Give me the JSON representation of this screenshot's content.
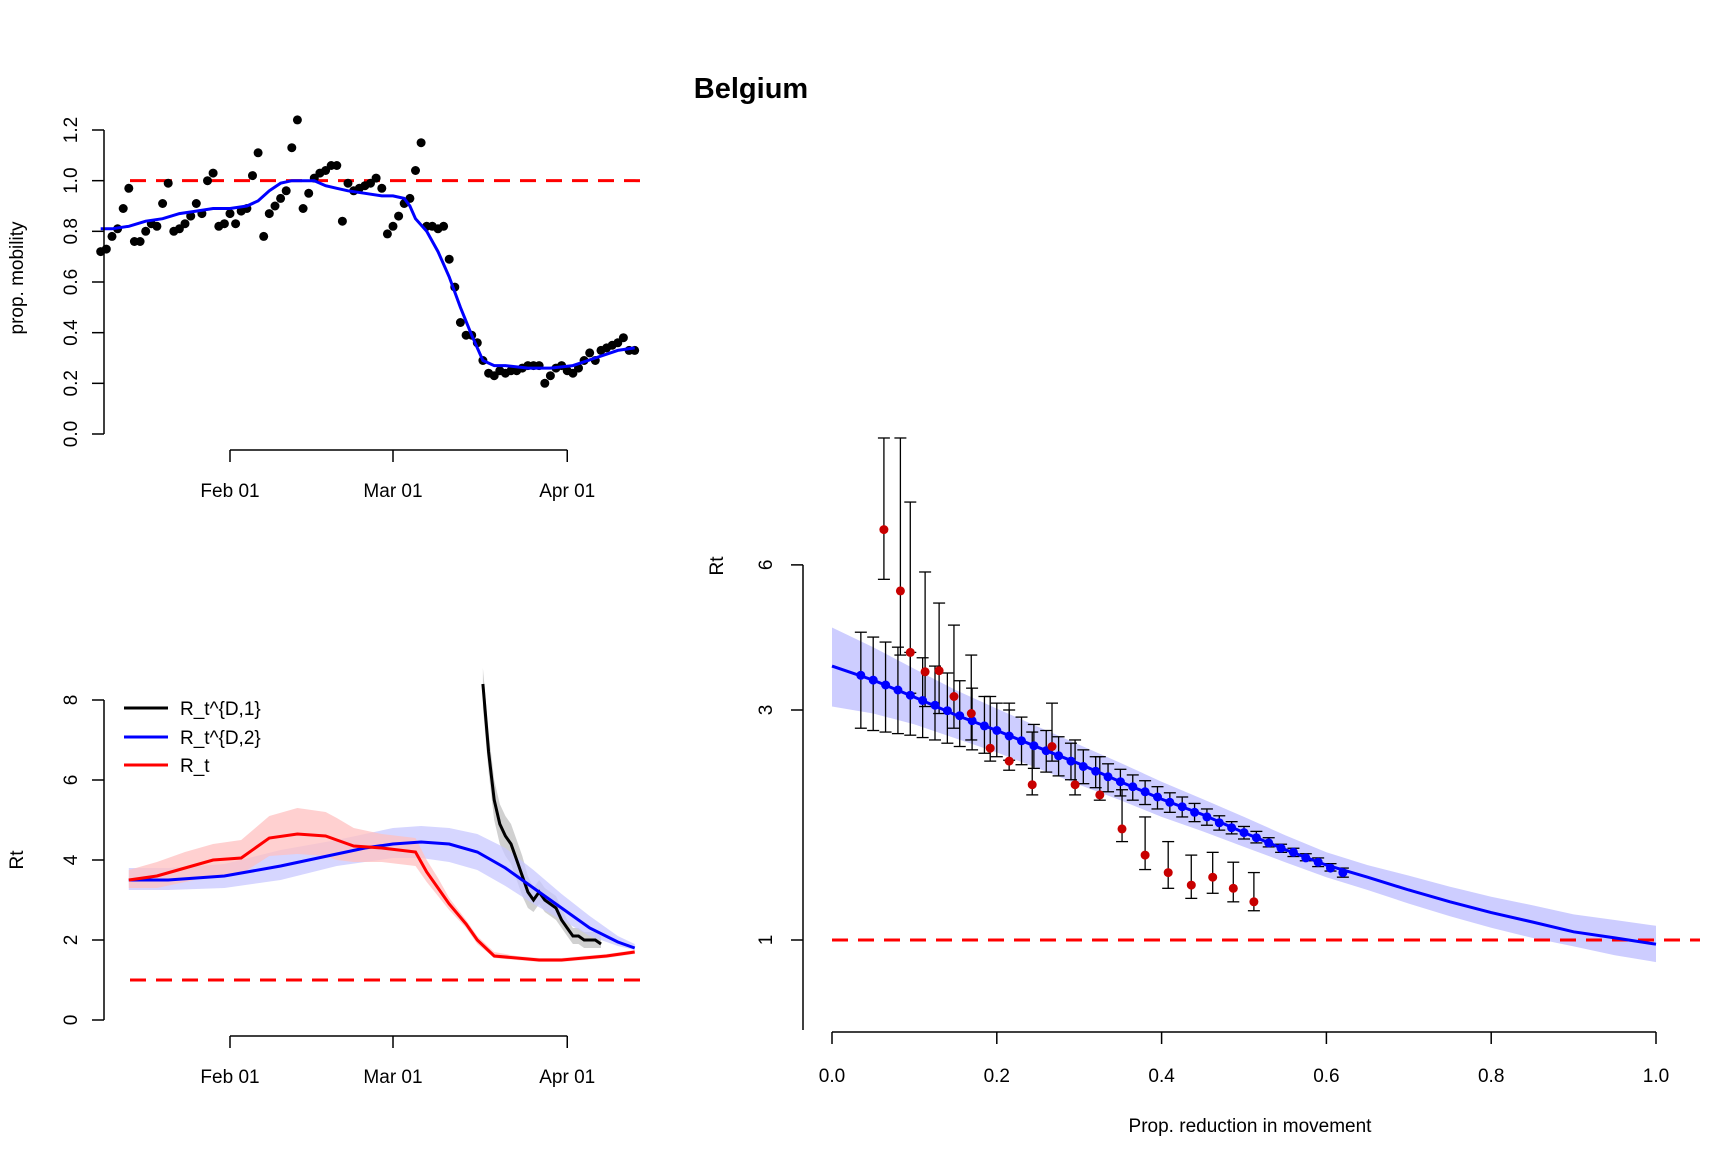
{
  "figure_title": "Belgium",
  "colors": {
    "observed": "#000000",
    "smooth": "#0000ff",
    "reference": "#ff0000",
    "band_blue": "#c8c8ff",
    "band_red": "#ffc0c0",
    "band_gray": "#c0c0c0",
    "points_red": "#c80000"
  },
  "chart_data": [
    {
      "id": "mobility",
      "type": "scatter",
      "title": "",
      "xlabel": "",
      "ylabel": "prop. mobility",
      "x_ticks": [
        "Feb 01",
        "Mar 01",
        "Apr 01"
      ],
      "x_tick_days": [
        31,
        60,
        91
      ],
      "x_range_days": [
        8,
        103
      ],
      "y_ticks": [
        "0.0",
        "0.2",
        "0.4",
        "0.6",
        "0.8",
        "1.0",
        "1.2"
      ],
      "ylim": [
        0,
        1.25
      ],
      "reference_line": 1.0,
      "series": [
        {
          "kind": "points",
          "day": [
            8,
            9,
            10,
            11,
            12,
            13,
            14,
            15,
            16,
            17,
            18,
            19,
            20,
            21,
            22,
            23,
            24,
            25,
            26,
            27,
            28,
            29,
            30,
            31,
            32,
            33,
            34,
            35,
            36,
            37,
            38,
            39,
            40,
            41,
            42,
            43,
            44,
            45,
            46,
            47,
            48,
            49,
            50,
            51,
            52,
            53,
            54,
            55,
            56,
            57,
            58,
            59,
            60,
            61,
            62,
            63,
            64,
            65,
            66,
            67,
            68,
            69,
            70,
            71,
            72,
            73,
            74,
            75,
            76,
            77,
            78,
            79,
            80,
            81,
            82,
            83,
            84,
            85,
            86,
            87,
            88,
            89,
            90,
            91,
            92,
            93,
            94,
            95,
            96,
            97,
            98,
            99,
            100,
            101,
            102,
            103
          ],
          "value": [
            0.72,
            0.73,
            0.78,
            0.81,
            0.89,
            0.97,
            0.76,
            0.76,
            0.8,
            0.83,
            0.82,
            0.91,
            0.99,
            0.8,
            0.81,
            0.83,
            0.86,
            0.91,
            0.87,
            1.0,
            1.03,
            0.82,
            0.83,
            0.87,
            0.83,
            0.88,
            0.89,
            1.02,
            1.11,
            0.78,
            0.87,
            0.9,
            0.93,
            0.96,
            1.13,
            1.24,
            0.89,
            0.95,
            1.01,
            1.03,
            1.04,
            1.06,
            1.06,
            0.84,
            0.99,
            0.96,
            0.97,
            0.98,
            0.99,
            1.01,
            0.97,
            0.79,
            0.82,
            0.86,
            0.91,
            0.93,
            1.04,
            1.15,
            0.82,
            0.82,
            0.81,
            0.82,
            0.69,
            0.58,
            0.44,
            0.39,
            0.39,
            0.36,
            0.29,
            0.24,
            0.23,
            0.25,
            0.24,
            0.25,
            0.25,
            0.26,
            0.27,
            0.27,
            0.27,
            0.2,
            0.23,
            0.26,
            0.27,
            0.25,
            0.24,
            0.26,
            0.29,
            0.32,
            0.29,
            0.33,
            0.34,
            0.35,
            0.36,
            0.38,
            0.33,
            0.33
          ]
        },
        {
          "kind": "smooth",
          "day": [
            8,
            10,
            13,
            16,
            19,
            22,
            25,
            28,
            31,
            34,
            36,
            38,
            40,
            42,
            44,
            46,
            48,
            50,
            52,
            55,
            58,
            60,
            62,
            63,
            64,
            66,
            68,
            70,
            72,
            74,
            76,
            78,
            80,
            84,
            88,
            92,
            96,
            100,
            103
          ],
          "value": [
            0.81,
            0.81,
            0.82,
            0.84,
            0.85,
            0.87,
            0.88,
            0.89,
            0.89,
            0.9,
            0.92,
            0.96,
            0.99,
            1.0,
            1.0,
            1.0,
            0.98,
            0.97,
            0.96,
            0.95,
            0.94,
            0.94,
            0.93,
            0.9,
            0.85,
            0.8,
            0.72,
            0.62,
            0.5,
            0.39,
            0.29,
            0.27,
            0.27,
            0.26,
            0.26,
            0.27,
            0.3,
            0.33,
            0.34
          ]
        }
      ]
    },
    {
      "id": "rt_time",
      "type": "line",
      "title": "",
      "xlabel": "",
      "ylabel": "Rt",
      "x_ticks": [
        "Feb 01",
        "Mar 01",
        "Apr 01"
      ],
      "x_tick_days": [
        31,
        60,
        91
      ],
      "y_ticks": [
        "0",
        "2",
        "4",
        "6",
        "8"
      ],
      "ylim": [
        0,
        8
      ],
      "reference_line": 1,
      "legend": {
        "placement": "top-left",
        "entries": [
          "R_t^{D,1}",
          "R_t^{D,2}",
          "R_t"
        ]
      },
      "series": [
        {
          "name": "R_t^{D,1}",
          "color": "#000000",
          "day": [
            76,
            77,
            78,
            79,
            80,
            81,
            82,
            83,
            84,
            85,
            86,
            87,
            88,
            89,
            90,
            91,
            92,
            93,
            94,
            95,
            96,
            97
          ],
          "value": [
            8.4,
            6.7,
            5.5,
            4.9,
            4.6,
            4.4,
            4.0,
            3.6,
            3.2,
            3.0,
            3.2,
            3.0,
            2.9,
            2.8,
            2.5,
            2.3,
            2.1,
            2.1,
            2.0,
            2.0,
            2.0,
            1.9
          ],
          "band_lower": [
            7.8,
            6.2,
            5.0,
            4.4,
            4.1,
            3.9,
            3.5,
            3.1,
            2.8,
            2.7,
            2.9,
            2.7,
            2.6,
            2.5,
            2.3,
            2.1,
            1.9,
            1.9,
            1.8,
            1.8,
            1.8,
            1.8
          ],
          "band_upper": [
            8.8,
            7.2,
            6.0,
            5.4,
            5.1,
            4.9,
            4.5,
            4.1,
            3.6,
            3.3,
            3.5,
            3.3,
            3.2,
            3.1,
            2.8,
            2.5,
            2.3,
            2.3,
            2.2,
            2.2,
            2.2,
            2.1
          ]
        },
        {
          "name": "R_t^{D,2}",
          "color": "#0000ff",
          "day": [
            13,
            20,
            30,
            40,
            50,
            55,
            60,
            65,
            70,
            75,
            80,
            85,
            90,
            95,
            100,
            103
          ],
          "value": [
            3.5,
            3.5,
            3.6,
            3.85,
            4.15,
            4.3,
            4.4,
            4.45,
            4.4,
            4.2,
            3.8,
            3.3,
            2.8,
            2.3,
            1.95,
            1.8
          ],
          "band_lower": [
            3.25,
            3.25,
            3.3,
            3.5,
            3.85,
            3.95,
            4.05,
            4.05,
            3.95,
            3.75,
            3.35,
            2.9,
            2.5,
            2.1,
            1.85,
            1.75
          ],
          "band_upper": [
            3.8,
            3.8,
            3.9,
            4.25,
            4.5,
            4.65,
            4.8,
            4.85,
            4.8,
            4.65,
            4.3,
            3.75,
            3.15,
            2.6,
            2.1,
            1.9
          ]
        },
        {
          "name": "R_t",
          "color": "#ff0000",
          "day": [
            13,
            18,
            23,
            28,
            33,
            38,
            43,
            48,
            50,
            53,
            58,
            61,
            64,
            66,
            68,
            70,
            73,
            75,
            78,
            82,
            86,
            90,
            94,
            98,
            103
          ],
          "value": [
            3.5,
            3.6,
            3.8,
            4.0,
            4.05,
            4.55,
            4.65,
            4.6,
            4.5,
            4.35,
            4.3,
            4.25,
            4.2,
            3.7,
            3.3,
            2.9,
            2.4,
            2.0,
            1.6,
            1.55,
            1.5,
            1.5,
            1.55,
            1.6,
            1.7
          ],
          "band_lower": [
            3.3,
            3.3,
            3.45,
            3.6,
            3.65,
            4.1,
            4.15,
            4.1,
            4.0,
            3.95,
            3.95,
            3.9,
            3.85,
            3.45,
            3.1,
            2.75,
            2.3,
            1.9,
            1.55,
            1.5,
            1.45,
            1.45,
            1.5,
            1.55,
            1.65
          ],
          "band_upper": [
            3.75,
            3.95,
            4.2,
            4.4,
            4.5,
            5.1,
            5.3,
            5.2,
            5.05,
            4.8,
            4.65,
            4.6,
            4.55,
            4.0,
            3.55,
            3.05,
            2.5,
            2.1,
            1.7,
            1.6,
            1.55,
            1.55,
            1.6,
            1.65,
            1.75
          ]
        }
      ]
    },
    {
      "id": "rt_vs_reduction",
      "type": "scatter",
      "title": "",
      "xlabel": "Prop. reduction in movement",
      "ylabel": "Rt",
      "log_y": true,
      "x_ticks": [
        "0.0",
        "0.2",
        "0.4",
        "0.6",
        "0.8",
        "1.0"
      ],
      "y_ticks": [
        "1",
        "3",
        "6"
      ],
      "xlim": [
        0,
        1
      ],
      "ylim": [
        0.73,
        11
      ],
      "reference_line": 1,
      "points": {
        "x": [
          0.063,
          0.083,
          0.095,
          0.113,
          0.13,
          0.148,
          0.169,
          0.192,
          0.215,
          0.243,
          0.267,
          0.295,
          0.325,
          0.352,
          0.38,
          0.408,
          0.436,
          0.462,
          0.487,
          0.512
        ],
        "y": [
          7.1,
          5.3,
          3.95,
          3.6,
          3.62,
          3.2,
          2.95,
          2.5,
          2.35,
          2.1,
          2.52,
          2.1,
          2.0,
          1.7,
          1.5,
          1.38,
          1.3,
          1.35,
          1.28,
          1.2
        ]
      },
      "fitted_points": {
        "x": [
          0.035,
          0.05,
          0.065,
          0.08,
          0.095,
          0.11,
          0.125,
          0.14,
          0.155,
          0.17,
          0.185,
          0.2,
          0.215,
          0.23,
          0.245,
          0.26,
          0.275,
          0.29,
          0.305,
          0.32,
          0.335,
          0.35,
          0.365,
          0.38,
          0.395,
          0.41,
          0.425,
          0.44,
          0.455,
          0.47,
          0.485,
          0.5,
          0.515,
          0.53,
          0.545,
          0.56,
          0.575,
          0.59,
          0.605,
          0.62
        ],
        "y": [
          3.54,
          3.46,
          3.38,
          3.3,
          3.22,
          3.14,
          3.07,
          2.99,
          2.92,
          2.85,
          2.78,
          2.72,
          2.65,
          2.59,
          2.53,
          2.47,
          2.41,
          2.35,
          2.29,
          2.24,
          2.18,
          2.13,
          2.08,
          2.03,
          1.98,
          1.93,
          1.89,
          1.84,
          1.8,
          1.75,
          1.71,
          1.67,
          1.63,
          1.59,
          1.55,
          1.52,
          1.48,
          1.45,
          1.41,
          1.38
        ],
        "ci_lower": [
          2.75,
          2.72,
          2.7,
          2.68,
          2.66,
          2.63,
          2.6,
          2.56,
          2.52,
          2.48,
          2.44,
          2.4,
          2.36,
          2.31,
          2.27,
          2.23,
          2.19,
          2.15,
          2.11,
          2.07,
          2.03,
          1.99,
          1.95,
          1.91,
          1.87,
          1.84,
          1.8,
          1.76,
          1.73,
          1.69,
          1.66,
          1.62,
          1.59,
          1.56,
          1.52,
          1.49,
          1.46,
          1.42,
          1.39,
          1.35
        ],
        "ci_upper": [
          4.35,
          4.25,
          4.15,
          4.05,
          3.95,
          3.85,
          3.7,
          3.58,
          3.45,
          3.33,
          3.2,
          3.1,
          3.0,
          2.9,
          2.8,
          2.72,
          2.64,
          2.56,
          2.48,
          2.4,
          2.32,
          2.26,
          2.2,
          2.14,
          2.08,
          2.02,
          1.98,
          1.92,
          1.87,
          1.81,
          1.76,
          1.72,
          1.68,
          1.63,
          1.58,
          1.55,
          1.51,
          1.48,
          1.44,
          1.41
        ]
      },
      "error_bar_upper_red": [
        11,
        11,
        8.1,
        5.8,
        5.0,
        4.5,
        3.9,
        3.2,
        3.1,
        2.7,
        3.1,
        2.6,
        2.4,
        2.05,
        1.8,
        1.6,
        1.5,
        1.52,
        1.45,
        1.38
      ],
      "error_bar_lower_red": [
        5.6,
        3.9,
        3.25,
        3.05,
        2.95,
        2.75,
        2.6,
        2.35,
        2.25,
        2.0,
        2.35,
        2.0,
        1.95,
        1.6,
        1.4,
        1.28,
        1.22,
        1.25,
        1.2,
        1.15
      ],
      "fit_curve": {
        "x": [
          0,
          0.05,
          0.1,
          0.15,
          0.2,
          0.25,
          0.3,
          0.35,
          0.4,
          0.45,
          0.5,
          0.55,
          0.6,
          0.65,
          0.7,
          0.75,
          0.8,
          0.85,
          0.9,
          0.95,
          1.0
        ],
        "y": [
          3.7,
          3.46,
          3.19,
          2.93,
          2.72,
          2.51,
          2.32,
          2.13,
          1.96,
          1.82,
          1.67,
          1.54,
          1.43,
          1.35,
          1.27,
          1.2,
          1.14,
          1.09,
          1.04,
          1.01,
          0.98
        ],
        "band_lower": [
          3.05,
          2.95,
          2.8,
          2.62,
          2.45,
          2.27,
          2.1,
          1.95,
          1.8,
          1.68,
          1.56,
          1.45,
          1.35,
          1.27,
          1.19,
          1.12,
          1.06,
          1.01,
          0.97,
          0.93,
          0.9
        ],
        "band_upper": [
          4.45,
          4.05,
          3.65,
          3.3,
          3.02,
          2.77,
          2.54,
          2.33,
          2.13,
          1.96,
          1.8,
          1.65,
          1.52,
          1.43,
          1.36,
          1.29,
          1.23,
          1.18,
          1.13,
          1.1,
          1.07
        ]
      }
    }
  ]
}
